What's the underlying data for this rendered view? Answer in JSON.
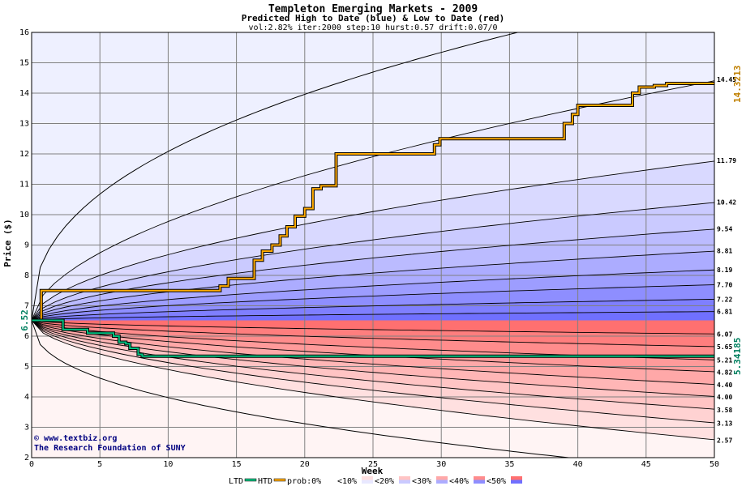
{
  "chart_data": {
    "type": "area",
    "title": "Templeton Emerging Markets - 2009",
    "subtitle": "Predicted High to Date (blue) &  Low to Date (red)",
    "params": "vol:2.82% iter:2000 step:10 hurst:0.57 drift:0.07/0",
    "xlabel": "Week",
    "ylabel": "Price ($)",
    "xlim": [
      0,
      50
    ],
    "ylim": [
      2,
      16
    ],
    "xticks": [
      0,
      5,
      10,
      15,
      20,
      25,
      30,
      35,
      40,
      45,
      50
    ],
    "yticks": [
      2,
      3,
      4,
      5,
      6,
      7,
      8,
      9,
      10,
      11,
      12,
      13,
      14,
      15,
      16
    ],
    "grid": true,
    "start_price": 6.52,
    "start_label": "6.52",
    "high_bands": {
      "color": "#0000ff",
      "end_values": [
        14.45,
        11.79,
        10.42,
        9.54,
        8.81,
        8.19,
        7.7,
        7.22,
        6.81
      ],
      "labels": [
        "14.45",
        "11.79",
        "10.42",
        "9.54",
        "8.81",
        "8.19",
        "7.70",
        "7.22",
        "6.81"
      ],
      "extreme_end": 17.5
    },
    "low_bands": {
      "color": "#ff0000",
      "end_values": [
        6.07,
        5.65,
        5.21,
        4.82,
        4.4,
        4.0,
        3.58,
        3.13,
        2.57
      ],
      "labels": [
        "6.07",
        "5.65",
        "5.21",
        "4.82",
        "4.40",
        "4.00",
        "3.58",
        "3.13",
        "2.57"
      ],
      "extreme_end": 1.5
    },
    "series": [
      {
        "name": "HTD",
        "color": "#ffaa00",
        "x": [
          0,
          0.7,
          0.7,
          13.8,
          13.8,
          14.4,
          14.4,
          16.3,
          16.3,
          16.9,
          16.9,
          17.6,
          17.6,
          18.2,
          18.2,
          18.7,
          18.7,
          19.3,
          19.3,
          20.0,
          20.0,
          20.6,
          20.6,
          21.2,
          21.2,
          22.3,
          22.3,
          29.5,
          29.5,
          29.9,
          29.9,
          39.0,
          39.0,
          39.6,
          39.6,
          40.0,
          40.0,
          44.0,
          44.0,
          44.5,
          44.5,
          45.6,
          45.6,
          46.5,
          46.5,
          50.5
        ],
        "y": [
          6.52,
          6.52,
          7.5,
          7.5,
          7.65,
          7.65,
          7.9,
          7.9,
          8.5,
          8.5,
          8.8,
          8.8,
          9.0,
          9.0,
          9.3,
          9.3,
          9.6,
          9.6,
          9.95,
          9.95,
          10.2,
          10.2,
          10.85,
          10.85,
          10.95,
          10.95,
          12.0,
          12.0,
          12.3,
          12.3,
          12.5,
          12.5,
          13.0,
          13.0,
          13.3,
          13.3,
          13.6,
          13.6,
          14.0,
          14.0,
          14.2,
          14.2,
          14.25,
          14.25,
          14.32,
          14.32
        ]
      },
      {
        "name": "LTD",
        "color": "#00c080",
        "x": [
          0,
          2.3,
          2.3,
          4.1,
          4.1,
          6.0,
          6.0,
          6.4,
          6.4,
          6.9,
          6.9,
          7.2,
          7.2,
          7.8,
          7.8,
          8.1,
          8.1,
          50.5
        ],
        "y": [
          6.52,
          6.52,
          6.22,
          6.22,
          6.1,
          6.1,
          6.0,
          6.0,
          5.8,
          5.8,
          5.75,
          5.75,
          5.6,
          5.6,
          5.4,
          5.4,
          5.34,
          5.34
        ]
      }
    ],
    "current_high": "14.3213",
    "current_low": "5.34185",
    "legend": {
      "ltd": "LTD",
      "htd": "HTD",
      "prob_prefix": "prob:0%",
      "bins": [
        "<10%",
        "<20%",
        "<30%",
        "<40%",
        "<50%"
      ]
    }
  },
  "credit": {
    "site": "www.textbiz.org",
    "org": "The Research Foundation of SUNY"
  },
  "colors": {
    "plot_bg": "#eef0ff",
    "grid": "#808080",
    "high_fill_1": "#e8e8ff",
    "high_fill_5": "#7070ff",
    "low_fill_1": "#ffe0e0",
    "low_fill_5": "#ff7070",
    "htd": "#ffaa00",
    "ltd": "#00c080",
    "htd_label": "#c08000",
    "ltd_label": "#008060"
  }
}
